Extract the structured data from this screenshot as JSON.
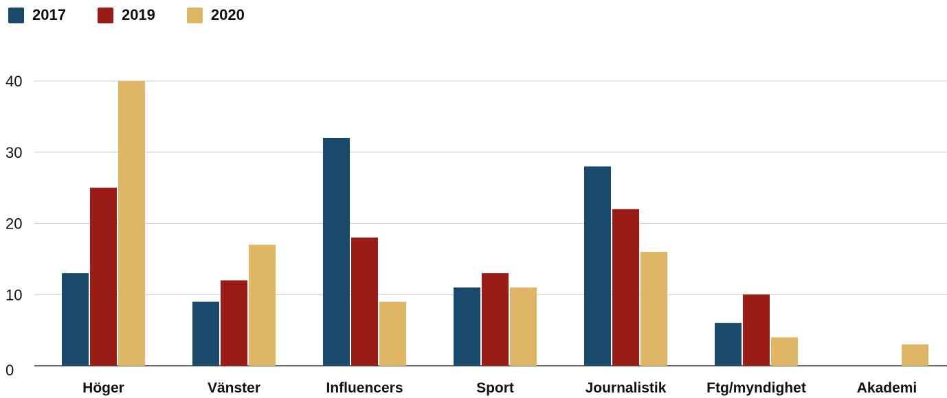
{
  "chart_data": {
    "type": "bar",
    "categories": [
      "Höger",
      "Vänster",
      "Influencers",
      "Sport",
      "Journalistik",
      "Ftg/myndighet",
      "Akademi"
    ],
    "series": [
      {
        "name": "2017",
        "color": "#1a4a6b",
        "values": [
          13,
          9,
          32,
          11,
          28,
          6,
          0
        ]
      },
      {
        "name": "2019",
        "color": "#9b1b17",
        "values": [
          25,
          12,
          18,
          13,
          22,
          10,
          0
        ]
      },
      {
        "name": "2020",
        "color": "#dfb665",
        "values": [
          40,
          17,
          9,
          11,
          16,
          4,
          3
        ]
      }
    ],
    "yticks": [
      "0",
      "10",
      "20",
      "30",
      "40"
    ],
    "ylim": [
      0,
      40
    ],
    "grid": true,
    "legend": "top-left"
  }
}
